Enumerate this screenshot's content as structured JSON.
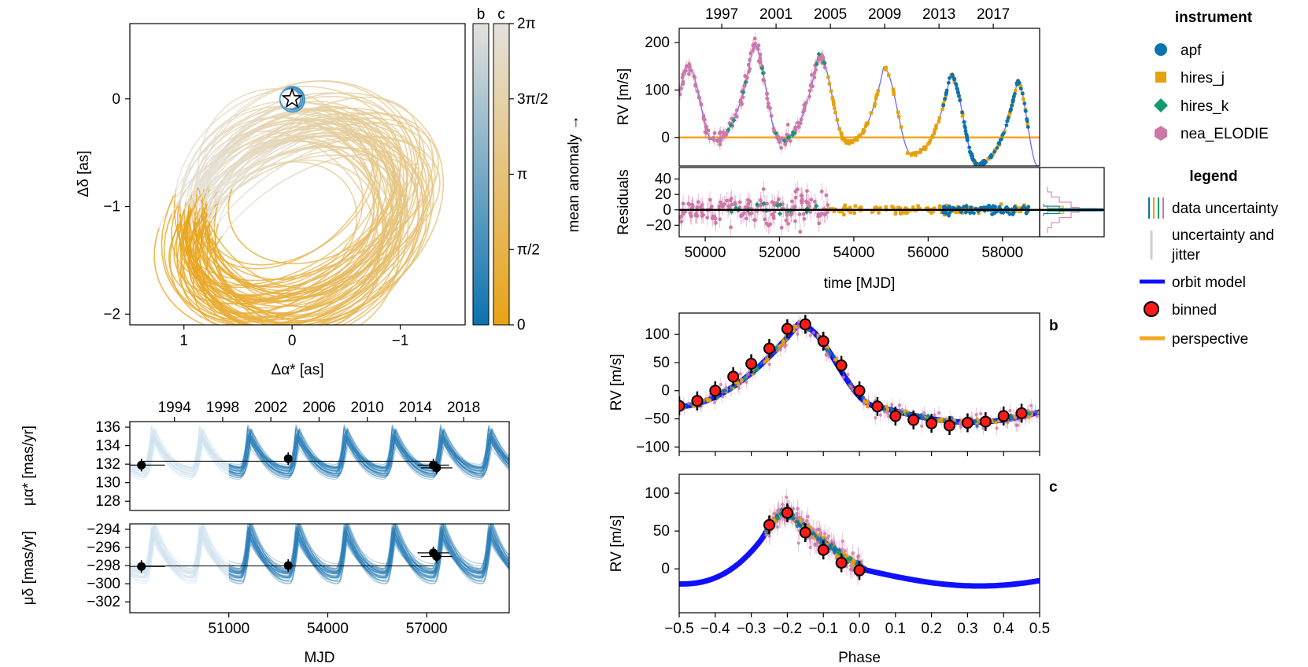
{
  "colors": {
    "apf": "#0b72b0",
    "hires_j": "#e6a10b",
    "hires_k": "#0f9a72",
    "nea_ELODIE": "#cc79a7",
    "model": "#1010ff",
    "perspective": "#f5a623",
    "binned": "#ff1a1a",
    "orbit_b": "#1a7ab5",
    "orbit_c": "#e8a317",
    "grey": "#cfcfcf"
  },
  "chart_data": [
    {
      "id": "astrometry",
      "type": "line",
      "title": "",
      "xlabel": "Δα* [as]",
      "ylabel": "Δδ [as]",
      "xlim": [
        1.5,
        -1.6
      ],
      "ylim": [
        -2.1,
        0.7
      ],
      "xticks": [
        {
          "v": 1,
          "label": "1"
        },
        {
          "v": 0,
          "label": "0"
        },
        {
          "v": -1,
          "label": "−1"
        }
      ],
      "yticks": [
        {
          "v": 0,
          "label": "0"
        },
        {
          "v": -1,
          "label": "−1"
        },
        {
          "v": -2,
          "label": "−2"
        }
      ],
      "colorbar": {
        "label": "mean anomaly →",
        "columns": [
          "b",
          "c"
        ],
        "ticks": [
          {
            "v": 0,
            "label": "0"
          },
          {
            "v": 1.5708,
            "label": "π/2"
          },
          {
            "v": 3.1416,
            "label": "π"
          },
          {
            "v": 4.7124,
            "label": "3π/2"
          },
          {
            "v": 6.2832,
            "label": "2π"
          }
        ]
      }
    },
    {
      "id": "rv_time",
      "type": "scatter",
      "ylabel": "RV [m/s]",
      "xlim": [
        49300,
        59000
      ],
      "ylim": [
        -60,
        230
      ],
      "yticks": [
        {
          "v": 0,
          "label": "0"
        },
        {
          "v": 100,
          "label": "100"
        },
        {
          "v": 200,
          "label": "200"
        }
      ],
      "top_axis": [
        {
          "v": 50446,
          "label": "1997"
        },
        {
          "v": 51907,
          "label": "2001"
        },
        {
          "v": 53369,
          "label": "2005"
        },
        {
          "v": 54830,
          "label": "2009"
        },
        {
          "v": 56292,
          "label": "2013"
        },
        {
          "v": 57753,
          "label": "2017"
        }
      ],
      "model_peaks": [
        {
          "t": 49550,
          "rv": 148
        },
        {
          "t": 51300,
          "rv": 198
        },
        {
          "t": 53050,
          "rv": 178
        },
        {
          "t": 54800,
          "rv": 148
        },
        {
          "t": 56600,
          "rv": 133
        },
        {
          "t": 58400,
          "rv": 118
        }
      ],
      "model_troughs": [
        {
          "t": 50200,
          "rv": -5
        },
        {
          "t": 52000,
          "rv": -5
        },
        {
          "t": 53800,
          "rv": -10
        },
        {
          "t": 55550,
          "rv": -35
        },
        {
          "t": 57300,
          "rv": -55
        },
        {
          "t": 58950,
          "rv": -60
        }
      ],
      "perspective_rv": 0
    },
    {
      "id": "residuals",
      "type": "scatter",
      "ylabel": "Residuals",
      "xlabel": "time [MJD]",
      "xlim": [
        49300,
        59000
      ],
      "ylim": [
        -35,
        55
      ],
      "yticks": [
        {
          "v": -20,
          "label": "−20"
        },
        {
          "v": 0,
          "label": "0"
        },
        {
          "v": 20,
          "label": "20"
        },
        {
          "v": 40,
          "label": "40"
        }
      ],
      "xticks": [
        {
          "v": 50000,
          "label": "50000"
        },
        {
          "v": 52000,
          "label": "52000"
        },
        {
          "v": 54000,
          "label": "54000"
        },
        {
          "v": 56000,
          "label": "56000"
        },
        {
          "v": 58000,
          "label": "58000"
        }
      ]
    },
    {
      "id": "phase_b",
      "type": "scatter",
      "panel_label": "b",
      "ylabel": "RV [m/s]",
      "xlim": [
        -0.5,
        0.5
      ],
      "ylim": [
        -108,
        138
      ],
      "yticks": [
        {
          "v": -100,
          "label": "−100"
        },
        {
          "v": -50,
          "label": "−50"
        },
        {
          "v": 0,
          "label": "0"
        },
        {
          "v": 50,
          "label": "50"
        },
        {
          "v": 100,
          "label": "100"
        }
      ],
      "binned": {
        "x": [
          -0.5,
          -0.45,
          -0.4,
          -0.35,
          -0.3,
          -0.25,
          -0.2,
          -0.15,
          -0.1,
          -0.05,
          0,
          0.05,
          0.1,
          0.15,
          0.2,
          0.25,
          0.3,
          0.35,
          0.4,
          0.45
        ],
        "y": [
          -27,
          -18,
          0,
          25,
          48,
          75,
          110,
          118,
          88,
          45,
          0,
          -28,
          -45,
          -52,
          -58,
          -62,
          -57,
          -55,
          -45,
          -40
        ]
      }
    },
    {
      "id": "phase_c",
      "type": "scatter",
      "panel_label": "c",
      "ylabel": "RV [m/s]",
      "xlabel": "Phase",
      "xlim": [
        -0.5,
        0.5
      ],
      "ylim": [
        -58,
        125
      ],
      "yticks": [
        {
          "v": 0,
          "label": "0"
        },
        {
          "v": 50,
          "label": "50"
        },
        {
          "v": 100,
          "label": "100"
        }
      ],
      "xticks": [
        {
          "v": -0.5,
          "label": "−0.5"
        },
        {
          "v": -0.4,
          "label": "−0.4"
        },
        {
          "v": -0.3,
          "label": "−0.3"
        },
        {
          "v": -0.2,
          "label": "−0.2"
        },
        {
          "v": -0.1,
          "label": "−0.1"
        },
        {
          "v": 0,
          "label": "0.0"
        },
        {
          "v": 0.1,
          "label": "0.1"
        },
        {
          "v": 0.2,
          "label": "0.2"
        },
        {
          "v": 0.3,
          "label": "0.3"
        },
        {
          "v": 0.4,
          "label": "0.4"
        },
        {
          "v": 0.5,
          "label": "0.5"
        }
      ],
      "binned": {
        "x": [
          -0.25,
          -0.2,
          -0.15,
          -0.1,
          -0.05,
          0
        ],
        "y": [
          58,
          74,
          48,
          25,
          8,
          -2
        ]
      }
    },
    {
      "id": "pm_ra",
      "type": "line",
      "ylabel": "μα* [mas/yr]",
      "xlim": [
        48000,
        59500
      ],
      "ylim": [
        127,
        136.6
      ],
      "yticks": [
        {
          "v": 128,
          "label": "128"
        },
        {
          "v": 130,
          "label": "130"
        },
        {
          "v": 132,
          "label": "132"
        },
        {
          "v": 134,
          "label": "134"
        },
        {
          "v": 136,
          "label": "136"
        }
      ],
      "top_axis": [
        {
          "v": 49353,
          "label": "1994"
        },
        {
          "v": 50814,
          "label": "1998"
        },
        {
          "v": 52275,
          "label": "2002"
        },
        {
          "v": 53736,
          "label": "2006"
        },
        {
          "v": 55197,
          "label": "2010"
        },
        {
          "v": 56658,
          "label": "2014"
        },
        {
          "v": 58119,
          "label": "2018"
        }
      ],
      "points": [
        {
          "t": 48350,
          "v": 131.9
        },
        {
          "t": 52800,
          "v": 132.6
        },
        {
          "t": 57200,
          "v": 131.9
        },
        {
          "t": 57300,
          "v": 131.6
        }
      ]
    },
    {
      "id": "pm_dec",
      "type": "line",
      "ylabel": "μδ [mas/yr]",
      "xlabel": "MJD",
      "xlim": [
        48000,
        59500
      ],
      "ylim": [
        -303.2,
        -293.4
      ],
      "yticks": [
        {
          "v": -294,
          "label": "−294"
        },
        {
          "v": -296,
          "label": "−296"
        },
        {
          "v": -298,
          "label": "−298"
        },
        {
          "v": -300,
          "label": "−300"
        },
        {
          "v": -302,
          "label": "−302"
        }
      ],
      "xticks": [
        {
          "v": 51000,
          "label": "51000"
        },
        {
          "v": 54000,
          "label": "54000"
        },
        {
          "v": 57000,
          "label": "57000"
        }
      ],
      "points": [
        {
          "t": 48350,
          "v": -298.1
        },
        {
          "t": 52800,
          "v": -298.0
        },
        {
          "t": 57200,
          "v": -296.6
        },
        {
          "t": 57300,
          "v": -297.0
        }
      ]
    }
  ],
  "legend": {
    "instrument_title": "instrument",
    "instruments": [
      {
        "key": "apf",
        "label": "apf",
        "marker": "circle"
      },
      {
        "key": "hires_j",
        "label": "hires_j",
        "marker": "square"
      },
      {
        "key": "hires_k",
        "label": "hires_k",
        "marker": "diamond"
      },
      {
        "key": "nea_ELODIE",
        "label": "nea_ELODIE",
        "marker": "hexagon"
      }
    ],
    "legend_title": "legend",
    "items": [
      {
        "label": "data uncertainty"
      },
      {
        "label_line1": "uncertainty and",
        "label_line2": "jitter"
      },
      {
        "label": "orbit model"
      },
      {
        "label": "binned"
      },
      {
        "label": "perspective"
      }
    ]
  }
}
